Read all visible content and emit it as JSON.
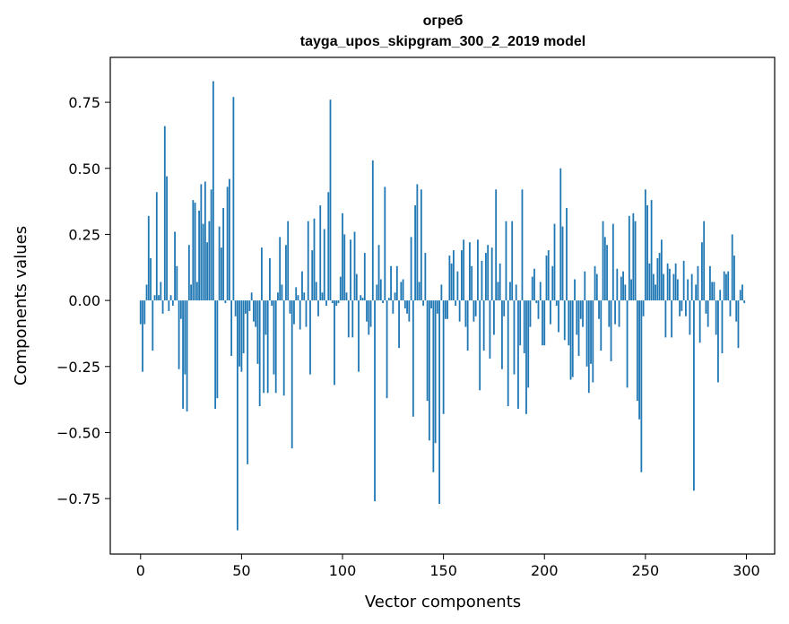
{
  "chart_data": {
    "type": "bar",
    "title": "огреб",
    "subtitle": "tayga_upos_skipgram_300_2_2019 model",
    "xlabel": "Vector components",
    "ylabel": "Components values",
    "xlim": [
      -15,
      314
    ],
    "ylim": [
      -0.96,
      0.92
    ],
    "xticks": [
      0,
      50,
      100,
      150,
      200,
      250,
      300
    ],
    "xtick_labels": [
      "0",
      "50",
      "100",
      "150",
      "200",
      "250",
      "300"
    ],
    "yticks": [
      0.75,
      0.5,
      0.25,
      0.0,
      -0.25,
      -0.5,
      -0.75
    ],
    "ytick_labels": [
      "0.75",
      "0.50",
      "0.25",
      "0.00",
      "−0.25",
      "−0.50",
      "−0.75"
    ],
    "grid": false,
    "legend": "none",
    "bar_color": "#1f77b4",
    "x": "0..299",
    "values": [
      -0.09,
      -0.27,
      -0.09,
      0.06,
      0.32,
      0.16,
      -0.19,
      0.02,
      0.41,
      0.02,
      0.07,
      -0.05,
      0.66,
      0.47,
      -0.04,
      0.02,
      -0.02,
      0.26,
      0.13,
      -0.26,
      -0.07,
      -0.41,
      -0.28,
      -0.42,
      0.21,
      0.06,
      0.38,
      0.37,
      0.07,
      0.34,
      0.44,
      0.29,
      0.45,
      0.22,
      0.3,
      0.42,
      0.83,
      -0.41,
      -0.37,
      0.28,
      0.2,
      0.35,
      -0.01,
      0.43,
      0.46,
      -0.21,
      0.77,
      -0.06,
      -0.87,
      -0.25,
      -0.27,
      -0.2,
      -0.05,
      -0.62,
      -0.04,
      0.03,
      -0.08,
      -0.1,
      -0.24,
      -0.4,
      0.2,
      -0.35,
      -0.13,
      -0.35,
      0.16,
      -0.02,
      -0.28,
      -0.35,
      0.03,
      0.24,
      0.06,
      -0.36,
      0.21,
      0.3,
      -0.05,
      -0.56,
      -0.09,
      0.05,
      0.02,
      -0.11,
      0.11,
      0.03,
      -0.1,
      0.3,
      -0.28,
      0.19,
      0.31,
      0.07,
      -0.06,
      0.36,
      0.03,
      0.27,
      -0.02,
      0.41,
      0.76,
      -0.01,
      -0.32,
      -0.02,
      -0.01,
      0.09,
      0.33,
      0.25,
      0.03,
      -0.14,
      0.23,
      -0.14,
      0.26,
      0.1,
      -0.27,
      0.02,
      0.01,
      0.18,
      -0.08,
      -0.13,
      -0.1,
      0.53,
      -0.76,
      0.06,
      0.21,
      0.08,
      -0.01,
      0.43,
      -0.37,
      0.01,
      0.13,
      -0.05,
      0.03,
      0.13,
      -0.18,
      0.07,
      0.08,
      -0.03,
      -0.05,
      -0.08,
      0.24,
      -0.44,
      0.36,
      0.44,
      0.07,
      0.42,
      -0.02,
      0.18,
      -0.38,
      -0.53,
      -0.03,
      -0.65,
      -0.54,
      -0.05,
      -0.77,
      0.06,
      -0.43,
      -0.07,
      -0.07,
      0.17,
      0.14,
      0.19,
      -0.02,
      0.11,
      -0.08,
      0.19,
      0.23,
      -0.1,
      -0.19,
      0.22,
      0.13,
      -0.08,
      -0.06,
      0.23,
      -0.34,
      0.15,
      -0.19,
      0.18,
      0.21,
      -0.22,
      0.2,
      -0.13,
      0.42,
      0.07,
      0.14,
      -0.26,
      -0.06,
      0.3,
      -0.4,
      0.07,
      0.3,
      -0.28,
      0.06,
      -0.41,
      -0.17,
      0.42,
      -0.2,
      -0.43,
      -0.33,
      -0.1,
      0.09,
      0.12,
      -0.01,
      -0.07,
      0.07,
      -0.17,
      -0.17,
      0.17,
      0.19,
      -0.09,
      0.13,
      0.29,
      -0.02,
      -0.12,
      0.5,
      0.28,
      -0.15,
      0.35,
      -0.17,
      -0.3,
      -0.29,
      0.08,
      -0.13,
      -0.21,
      -0.07,
      -0.1,
      0.11,
      -0.25,
      -0.35,
      -0.24,
      -0.31,
      0.13,
      0.1,
      -0.07,
      -0.19,
      0.3,
      0.24,
      0.21,
      -0.1,
      -0.23,
      0.29,
      -0.09,
      0.12,
      -0.1,
      0.09,
      0.11,
      0.06,
      -0.33,
      0.32,
      0.08,
      0.33,
      0.3,
      -0.38,
      -0.45,
      -0.65,
      -0.06,
      0.42,
      0.36,
      0.14,
      0.38,
      0.1,
      0.06,
      0.16,
      0.18,
      0.23,
      0.1,
      -0.14,
      0.14,
      0.12,
      -0.14,
      0.1,
      0.14,
      0.08,
      -0.06,
      -0.04,
      0.15,
      -0.06,
      0.08,
      -0.13,
      0.1,
      -0.72,
      0.06,
      0.13,
      -0.16,
      0.22,
      0.3,
      -0.05,
      -0.1,
      0.13,
      0.07,
      0.07,
      -0.13,
      -0.31,
      0.04,
      -0.2,
      0.11,
      0.1,
      0.11,
      -0.06,
      0.25,
      0.17,
      -0.08,
      -0.18,
      0.04,
      0.06,
      -0.01
    ]
  }
}
